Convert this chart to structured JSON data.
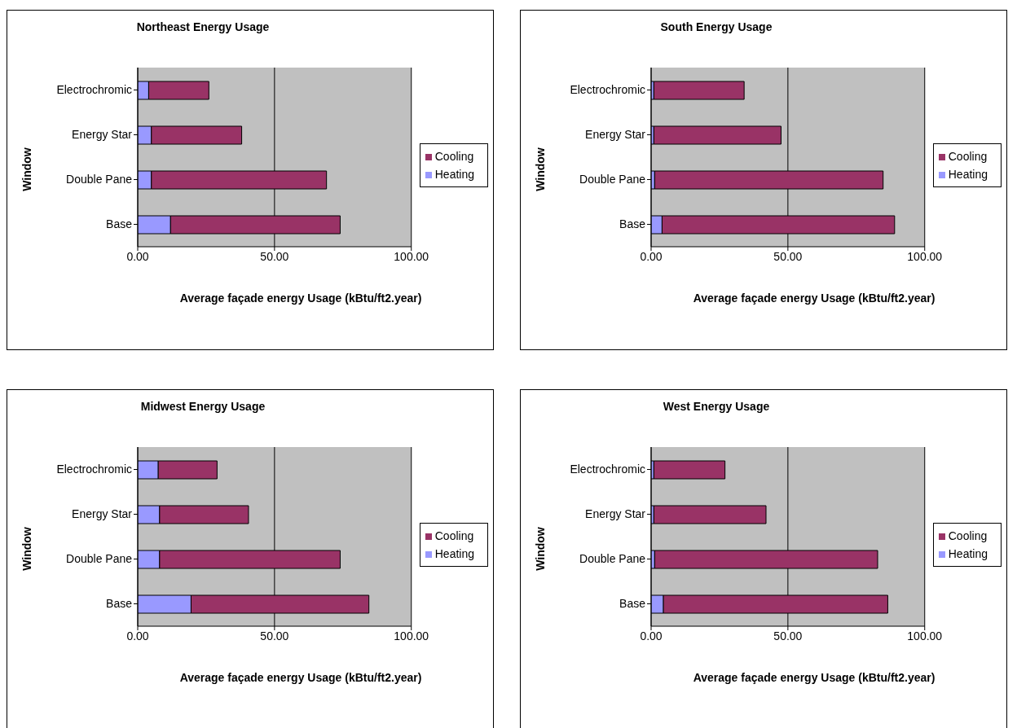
{
  "chart_data": [
    {
      "type": "bar",
      "title": "Northeast Energy Usage",
      "xlabel": "Average façade energy Usage (kBtu/ft2.year)",
      "ylabel": "Window",
      "orientation": "horizontal",
      "stacked": true,
      "categories": [
        "Electrochromic",
        "Energy Star",
        "Double Pane",
        "Base"
      ],
      "series": [
        {
          "name": "Heating",
          "color": "#9999ff",
          "values": [
            4,
            5,
            5,
            12
          ]
        },
        {
          "name": "Cooling",
          "color": "#993366",
          "values": [
            22,
            33,
            64,
            62
          ]
        }
      ],
      "xlim": [
        0,
        100
      ],
      "xticks": [
        {
          "value": 0,
          "label": "0.00"
        },
        {
          "value": 50,
          "label": "50.00"
        },
        {
          "value": 100,
          "label": "100.00"
        }
      ],
      "grid": "x",
      "legend": "right"
    },
    {
      "type": "bar",
      "title": "South Energy Usage",
      "xlabel": "Average façade energy Usage (kBtu/ft2.year)",
      "ylabel": "Window",
      "orientation": "horizontal",
      "stacked": true,
      "categories": [
        "Electrochromic",
        "Energy Star",
        "Double Pane",
        "Base"
      ],
      "series": [
        {
          "name": "Heating",
          "color": "#9999ff",
          "values": [
            1,
            1,
            1.3,
            4
          ]
        },
        {
          "name": "Cooling",
          "color": "#993366",
          "values": [
            33,
            46.5,
            83.5,
            85
          ]
        }
      ],
      "xlim": [
        0,
        100
      ],
      "xticks": [
        {
          "value": 0,
          "label": "0.00"
        },
        {
          "value": 50,
          "label": "50.00"
        },
        {
          "value": 100,
          "label": "100.00"
        }
      ],
      "grid": "x",
      "legend": "right"
    },
    {
      "type": "bar",
      "title": "Midwest Energy Usage",
      "xlabel": "Average façade energy Usage (kBtu/ft2.year)",
      "ylabel": "Window",
      "orientation": "horizontal",
      "stacked": true,
      "categories": [
        "Electrochromic",
        "Energy Star",
        "Double Pane",
        "Base"
      ],
      "series": [
        {
          "name": "Heating",
          "color": "#9999ff",
          "values": [
            7.5,
            8,
            8,
            19.5
          ]
        },
        {
          "name": "Cooling",
          "color": "#993366",
          "values": [
            21.5,
            32.5,
            66,
            65
          ]
        }
      ],
      "xlim": [
        0,
        100
      ],
      "xticks": [
        {
          "value": 0,
          "label": "0.00"
        },
        {
          "value": 50,
          "label": "50.00"
        },
        {
          "value": 100,
          "label": "100.00"
        }
      ],
      "grid": "x",
      "legend": "right"
    },
    {
      "type": "bar",
      "title": "West Energy Usage",
      "xlabel": "Average façade energy Usage (kBtu/ft2.year)",
      "ylabel": "Window",
      "orientation": "horizontal",
      "stacked": true,
      "categories": [
        "Electrochromic",
        "Energy Star",
        "Double Pane",
        "Base"
      ],
      "series": [
        {
          "name": "Heating",
          "color": "#9999ff",
          "values": [
            1,
            1,
            1.3,
            4.5
          ]
        },
        {
          "name": "Cooling",
          "color": "#993366",
          "values": [
            26,
            41,
            81.5,
            82
          ]
        }
      ],
      "xlim": [
        0,
        100
      ],
      "xticks": [
        {
          "value": 0,
          "label": "0.00"
        },
        {
          "value": 50,
          "label": "50.00"
        },
        {
          "value": 100,
          "label": "100.00"
        }
      ],
      "grid": "x",
      "legend": "right"
    }
  ]
}
